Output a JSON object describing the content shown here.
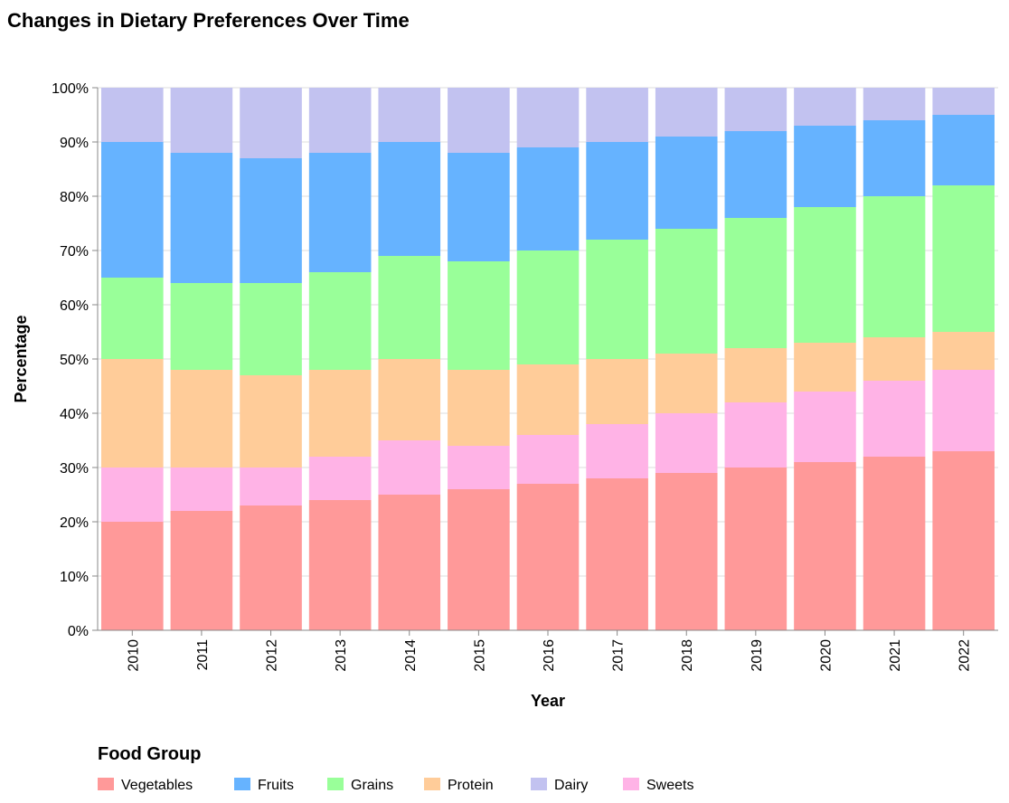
{
  "chart_data": {
    "type": "bar",
    "stacked": "normalized",
    "title": "Changes in Dietary Preferences Over Time",
    "xlabel": "Year",
    "ylabel": "Percentage",
    "ylim": [
      0,
      100
    ],
    "y_ticks": [
      "0%",
      "10%",
      "20%",
      "30%",
      "40%",
      "50%",
      "60%",
      "70%",
      "80%",
      "90%",
      "100%"
    ],
    "legend_title": "Food Group",
    "legend_position": "bottom",
    "categories": [
      "2010",
      "2011",
      "2012",
      "2013",
      "2014",
      "2015",
      "2016",
      "2017",
      "2018",
      "2019",
      "2020",
      "2021",
      "2022"
    ],
    "stack_order": [
      "Vegetables",
      "Sweets",
      "Protein",
      "Grains",
      "Fruits",
      "Dairy"
    ],
    "series": [
      {
        "name": "Vegetables",
        "color": "#ff9999",
        "values": [
          20,
          22,
          23,
          24,
          25,
          26,
          27,
          28,
          29,
          30,
          31,
          32,
          33
        ]
      },
      {
        "name": "Fruits",
        "color": "#66b3ff",
        "values": [
          25,
          24,
          23,
          22,
          21,
          20,
          19,
          18,
          17,
          16,
          15,
          14,
          13
        ]
      },
      {
        "name": "Grains",
        "color": "#99ff99",
        "values": [
          15,
          16,
          17,
          18,
          19,
          20,
          21,
          22,
          23,
          24,
          25,
          26,
          27
        ]
      },
      {
        "name": "Protein",
        "color": "#ffcc99",
        "values": [
          20,
          18,
          17,
          16,
          15,
          14,
          13,
          12,
          11,
          10,
          9,
          8,
          7
        ]
      },
      {
        "name": "Dairy",
        "color": "#c2c2f0",
        "values": [
          10,
          12,
          13,
          12,
          10,
          12,
          11,
          10,
          9,
          8,
          7,
          6,
          5
        ]
      },
      {
        "name": "Sweets",
        "color": "#ffb3e6",
        "values": [
          10,
          8,
          7,
          8,
          10,
          8,
          9,
          10,
          11,
          12,
          13,
          14,
          15
        ]
      }
    ]
  }
}
